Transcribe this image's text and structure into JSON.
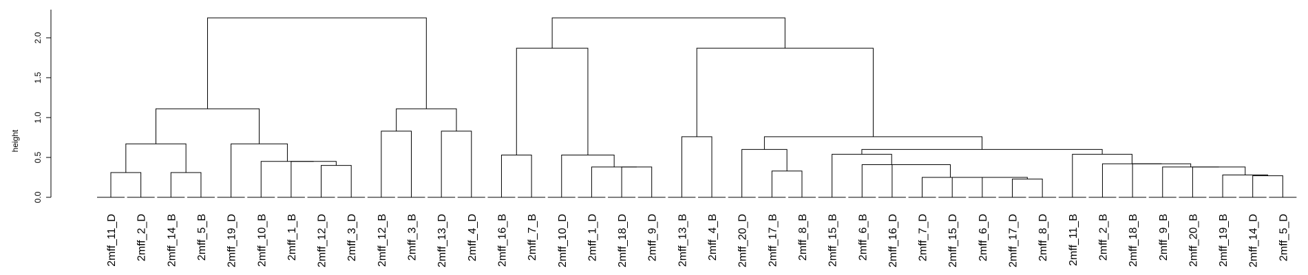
{
  "chart_data": {
    "type": "dendrogram",
    "ylabel": "height",
    "ylim": [
      0,
      2.35
    ],
    "yticks": [
      0.0,
      0.5,
      1.0,
      1.5,
      2.0
    ],
    "ytick_labels": [
      "0.0",
      "0.5",
      "1.0",
      "1.5",
      "2.0"
    ],
    "leaves": [
      "2mff_11_D",
      "2mff_2_D",
      "2mff_14_B",
      "2mff_5_B",
      "2mff_19_D",
      "2mff_10_B",
      "2mff_1_B",
      "2mff_12_D",
      "2mff_3_D",
      "2mff_12_B",
      "2mff_3_B",
      "2mff_13_D",
      "2mff_4_D",
      "2mff_16_B",
      "2mff_7_B",
      "2mff_10_D",
      "2mff_1_D",
      "2mff_18_D",
      "2mff_9_D",
      "2mff_13_B",
      "2mff_4_B",
      "2mff_20_D",
      "2mff_17_B",
      "2mff_8_B",
      "2mff_15_B",
      "2mff_6_B",
      "2mff_16_D",
      "2mff_7_D",
      "2mff_15_D",
      "2mff_6_D",
      "2mff_17_D",
      "2mff_8_D",
      "2mff_11_B",
      "2mff_2_B",
      "2mff_18_B",
      "2mff_9_B",
      "2mff_20_B",
      "2mff_19_B",
      "2mff_14_D",
      "2mff_5_D"
    ],
    "merges": [
      {
        "a": "L0",
        "b": "L1",
        "h": 0.31
      },
      {
        "a": "L2",
        "b": "L3",
        "h": 0.31
      },
      {
        "a": "M0",
        "b": "M1",
        "h": 0.67
      },
      {
        "a": "L7",
        "b": "L8",
        "h": 0.4
      },
      {
        "a": "L6",
        "b": "M3",
        "h": 0.45
      },
      {
        "a": "L5",
        "b": "M4",
        "h": 0.45
      },
      {
        "a": "L4",
        "b": "M5",
        "h": 0.67
      },
      {
        "a": "M2",
        "b": "M6",
        "h": 1.11
      },
      {
        "a": "L9",
        "b": "L10",
        "h": 0.83
      },
      {
        "a": "L11",
        "b": "L12",
        "h": 0.83
      },
      {
        "a": "M8",
        "b": "M9",
        "h": 1.11
      },
      {
        "a": "M7",
        "b": "M10",
        "h": 2.25
      },
      {
        "a": "L13",
        "b": "L14",
        "h": 0.53
      },
      {
        "a": "L17",
        "b": "L18",
        "h": 0.38
      },
      {
        "a": "L16",
        "b": "M13",
        "h": 0.38
      },
      {
        "a": "L15",
        "b": "M14",
        "h": 0.53
      },
      {
        "a": "M12",
        "b": "M15",
        "h": 1.87
      },
      {
        "a": "L19",
        "b": "L20",
        "h": 0.76
      },
      {
        "a": "L22",
        "b": "L23",
        "h": 0.33
      },
      {
        "a": "L21",
        "b": "M18",
        "h": 0.6
      },
      {
        "a": "L30",
        "b": "L31",
        "h": 0.23
      },
      {
        "a": "L29",
        "b": "M20",
        "h": 0.25
      },
      {
        "a": "L28",
        "b": "M21",
        "h": 0.25
      },
      {
        "a": "L27",
        "b": "M22",
        "h": 0.25
      },
      {
        "a": "L26",
        "b": "M23",
        "h": 0.41
      },
      {
        "a": "L25",
        "b": "M24",
        "h": 0.41
      },
      {
        "a": "L24",
        "b": "M25",
        "h": 0.54
      },
      {
        "a": "L38",
        "b": "L39",
        "h": 0.27
      },
      {
        "a": "L37",
        "b": "M27",
        "h": 0.28
      },
      {
        "a": "L36",
        "b": "M28",
        "h": 0.38
      },
      {
        "a": "L35",
        "b": "M29",
        "h": 0.38
      },
      {
        "a": "L34",
        "b": "M30",
        "h": 0.42
      },
      {
        "a": "L33",
        "b": "M31",
        "h": 0.42
      },
      {
        "a": "L32",
        "b": "M32",
        "h": 0.54
      },
      {
        "a": "M26",
        "b": "M33",
        "h": 0.6
      },
      {
        "a": "M19",
        "b": "M34",
        "h": 0.76
      },
      {
        "a": "M17",
        "b": "M35",
        "h": 1.87
      },
      {
        "a": "M16",
        "b": "M36",
        "h": 2.25
      }
    ]
  }
}
